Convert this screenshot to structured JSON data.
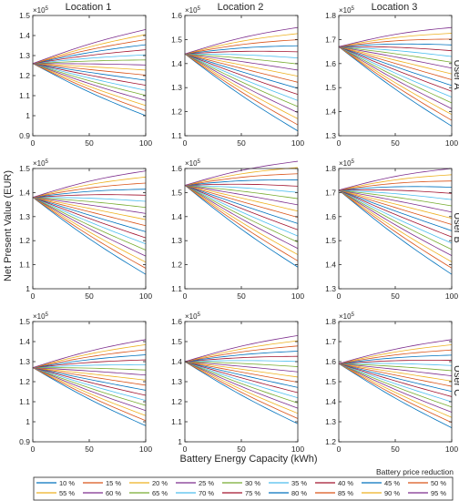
{
  "figure": {
    "xlabel": "Battery Energy Capacity (kWh)",
    "ylabel": "Net Present Value (EUR)",
    "column_titles": [
      "Location 1",
      "Location 2",
      "Location 3"
    ],
    "row_titles": [
      "User A",
      "User B",
      "User C"
    ],
    "exponent_base": "×10",
    "exponent_power": "5"
  },
  "legend": {
    "title": "Battery price reduction",
    "entries": [
      {
        "label": "10 %",
        "color": "#0072BD"
      },
      {
        "label": "15 %",
        "color": "#D95319"
      },
      {
        "label": "20 %",
        "color": "#EDB120"
      },
      {
        "label": "25 %",
        "color": "#7E2F8E"
      },
      {
        "label": "30 %",
        "color": "#77AC30"
      },
      {
        "label": "35 %",
        "color": "#4DBEEE"
      },
      {
        "label": "40 %",
        "color": "#A2142F"
      },
      {
        "label": "45 %",
        "color": "#0072BD"
      },
      {
        "label": "50 %",
        "color": "#D95319"
      },
      {
        "label": "55 %",
        "color": "#EDB120"
      },
      {
        "label": "60 %",
        "color": "#7E2F8E"
      },
      {
        "label": "65 %",
        "color": "#77AC30"
      },
      {
        "label": "70 %",
        "color": "#4DBEEE"
      },
      {
        "label": "75 %",
        "color": "#A2142F"
      },
      {
        "label": "80 %",
        "color": "#0072BD"
      },
      {
        "label": "85 %",
        "color": "#D95319"
      },
      {
        "label": "90 %",
        "color": "#EDB120"
      },
      {
        "label": "95 %",
        "color": "#7E2F8E"
      }
    ]
  },
  "chart_data": [
    {
      "type": "line",
      "row": 0,
      "col": 0,
      "xlim": [
        0,
        100
      ],
      "xticks": [
        0,
        50,
        100
      ],
      "ylim": [
        0.9,
        1.5
      ],
      "yticks": [
        0.9,
        1.0,
        1.1,
        1.2,
        1.3,
        1.4,
        1.5
      ],
      "x": [
        0,
        100
      ],
      "start": 1.26,
      "end_low": 1.0,
      "end_high": 1.43
    },
    {
      "type": "line",
      "row": 0,
      "col": 1,
      "xlim": [
        0,
        100
      ],
      "xticks": [
        0,
        50,
        100
      ],
      "ylim": [
        1.1,
        1.6
      ],
      "yticks": [
        1.1,
        1.2,
        1.3,
        1.4,
        1.5,
        1.6
      ],
      "x": [
        0,
        100
      ],
      "start": 1.44,
      "end_low": 1.12,
      "end_high": 1.55
    },
    {
      "type": "line",
      "row": 0,
      "col": 2,
      "xlim": [
        0,
        100
      ],
      "xticks": [
        0,
        50,
        100
      ],
      "ylim": [
        1.3,
        1.8
      ],
      "yticks": [
        1.3,
        1.4,
        1.5,
        1.6,
        1.7,
        1.8
      ],
      "x": [
        0,
        100
      ],
      "start": 1.67,
      "end_low": 1.34,
      "end_high": 1.75
    },
    {
      "type": "line",
      "row": 1,
      "col": 0,
      "xlim": [
        0,
        100
      ],
      "xticks": [
        0,
        50,
        100
      ],
      "ylim": [
        1.0,
        1.5
      ],
      "yticks": [
        1.0,
        1.1,
        1.2,
        1.3,
        1.4,
        1.5
      ],
      "x": [
        0,
        100
      ],
      "start": 1.38,
      "end_low": 1.06,
      "end_high": 1.49
    },
    {
      "type": "line",
      "row": 1,
      "col": 1,
      "xlim": [
        0,
        100
      ],
      "xticks": [
        0,
        50,
        100
      ],
      "ylim": [
        1.1,
        1.6
      ],
      "yticks": [
        1.1,
        1.2,
        1.3,
        1.4,
        1.5,
        1.6
      ],
      "x": [
        0,
        100
      ],
      "start": 1.53,
      "end_low": 1.19,
      "end_high": 1.63
    },
    {
      "type": "line",
      "row": 1,
      "col": 2,
      "xlim": [
        0,
        100
      ],
      "xticks": [
        0,
        50,
        100
      ],
      "ylim": [
        1.3,
        1.8
      ],
      "yticks": [
        1.3,
        1.4,
        1.5,
        1.6,
        1.7,
        1.8
      ],
      "x": [
        0,
        100
      ],
      "start": 1.71,
      "end_low": 1.36,
      "end_high": 1.8
    },
    {
      "type": "line",
      "row": 2,
      "col": 0,
      "xlim": [
        0,
        100
      ],
      "xticks": [
        0,
        50,
        100
      ],
      "ylim": [
        0.9,
        1.5
      ],
      "yticks": [
        0.9,
        1.0,
        1.1,
        1.2,
        1.3,
        1.4,
        1.5
      ],
      "x": [
        0,
        100
      ],
      "start": 1.27,
      "end_low": 0.98,
      "end_high": 1.41
    },
    {
      "type": "line",
      "row": 2,
      "col": 1,
      "xlim": [
        0,
        100
      ],
      "xticks": [
        0,
        50,
        100
      ],
      "ylim": [
        1.0,
        1.6
      ],
      "yticks": [
        1.0,
        1.1,
        1.2,
        1.3,
        1.4,
        1.5,
        1.6
      ],
      "x": [
        0,
        100
      ],
      "start": 1.4,
      "end_low": 1.09,
      "end_high": 1.53
    },
    {
      "type": "line",
      "row": 2,
      "col": 2,
      "xlim": [
        0,
        100
      ],
      "xticks": [
        0,
        50,
        100
      ],
      "ylim": [
        1.2,
        1.8
      ],
      "yticks": [
        1.2,
        1.3,
        1.4,
        1.5,
        1.6,
        1.7,
        1.8
      ],
      "x": [
        0,
        100
      ],
      "start": 1.59,
      "end_low": 1.27,
      "end_high": 1.71
    }
  ]
}
